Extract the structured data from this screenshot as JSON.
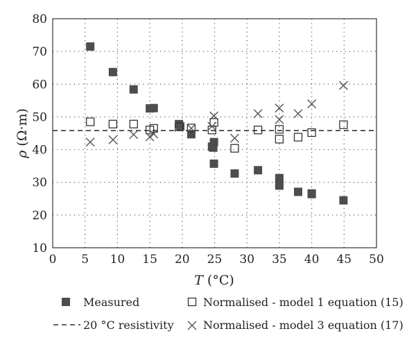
{
  "chart_data": {
    "type": "scatter",
    "title": "",
    "xlabel": {
      "italic": "T",
      "rest": " (°C)"
    },
    "ylabel": {
      "italic": "ρ",
      "rest": " (Ω·m)"
    },
    "xlim": [
      0,
      50
    ],
    "ylim": [
      10,
      80
    ],
    "xticks": [
      0,
      5,
      10,
      15,
      20,
      25,
      30,
      35,
      40,
      45,
      50
    ],
    "yticks": [
      10,
      20,
      30,
      40,
      50,
      60,
      70,
      80
    ],
    "grid": true,
    "legend_position": "bottom",
    "series": [
      {
        "name": "Measured",
        "marker": "filled-square",
        "color": "#4d4d4d",
        "points": [
          [
            5.8,
            71.5
          ],
          [
            9.3,
            63.7
          ],
          [
            12.5,
            58.4
          ],
          [
            15.0,
            52.6
          ],
          [
            15.6,
            52.7
          ],
          [
            19.5,
            47.8
          ],
          [
            19.7,
            47.1
          ],
          [
            21.4,
            44.7
          ],
          [
            24.6,
            40.9
          ],
          [
            24.8,
            40.6
          ],
          [
            24.9,
            42.3
          ],
          [
            24.9,
            35.7
          ],
          [
            28.1,
            32.7
          ],
          [
            31.7,
            33.7
          ],
          [
            35.0,
            31.3
          ],
          [
            35.0,
            29.6
          ],
          [
            35.0,
            29.0
          ],
          [
            37.9,
            27.1
          ],
          [
            40.0,
            26.6
          ],
          [
            40.0,
            26.4
          ],
          [
            44.9,
            24.5
          ]
        ]
      },
      {
        "name": "Normalised - model 1 equation (15)",
        "marker": "open-square",
        "color": "#333333",
        "points": [
          [
            5.8,
            48.5
          ],
          [
            9.3,
            47.8
          ],
          [
            12.5,
            47.8
          ],
          [
            15.0,
            46.0
          ],
          [
            15.6,
            46.5
          ],
          [
            19.5,
            47.0
          ],
          [
            21.4,
            46.6
          ],
          [
            24.6,
            46.0
          ],
          [
            24.9,
            48.3
          ],
          [
            28.1,
            40.4
          ],
          [
            31.7,
            46.0
          ],
          [
            35.0,
            46.2
          ],
          [
            35.0,
            43.2
          ],
          [
            37.9,
            43.8
          ],
          [
            40.0,
            45.2
          ],
          [
            44.9,
            47.6
          ]
        ]
      },
      {
        "name": "Normalised - model 3 equation (17)",
        "marker": "cross",
        "color": "#555555",
        "points": [
          [
            5.8,
            42.3
          ],
          [
            9.3,
            43.0
          ],
          [
            12.5,
            44.6
          ],
          [
            15.0,
            43.9
          ],
          [
            15.6,
            44.8
          ],
          [
            19.5,
            46.8
          ],
          [
            21.4,
            46.5
          ],
          [
            24.6,
            47.1
          ],
          [
            24.9,
            50.3
          ],
          [
            28.1,
            43.5
          ],
          [
            31.7,
            51.0
          ],
          [
            35.0,
            52.7
          ],
          [
            35.0,
            49.2
          ],
          [
            37.9,
            51.0
          ],
          [
            40.0,
            54.0
          ],
          [
            44.9,
            59.6
          ]
        ]
      }
    ],
    "reference_line": {
      "name": "20 °C resistivity",
      "y": 45.8,
      "style": "dashed",
      "color": "#333333"
    }
  }
}
